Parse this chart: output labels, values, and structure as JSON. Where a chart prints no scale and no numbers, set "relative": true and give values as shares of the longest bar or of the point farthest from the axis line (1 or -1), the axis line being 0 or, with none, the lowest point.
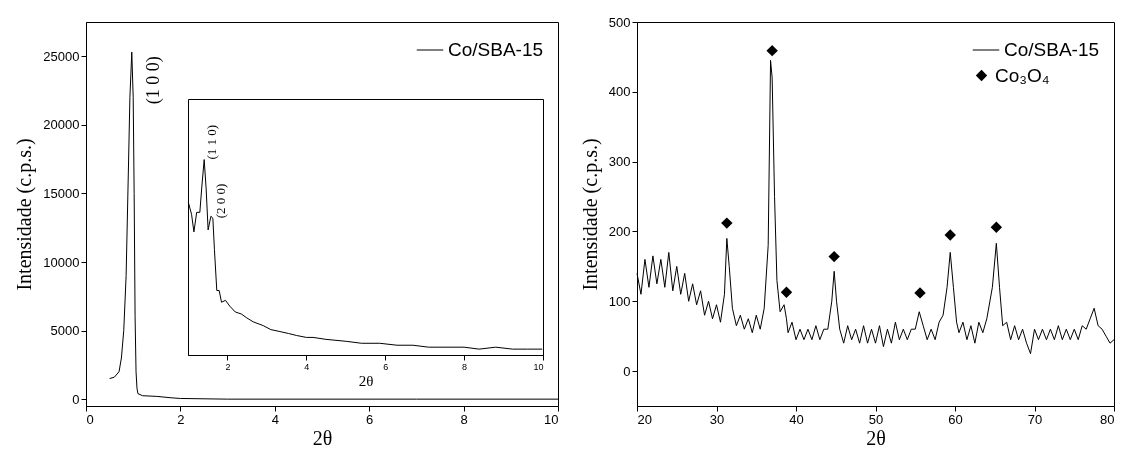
{
  "chart_data": [
    {
      "type": "line",
      "xlabel": "2θ",
      "ylabel": "Intensidade (c.p.s.)",
      "xlim": [
        0,
        10
      ],
      "ylim": [
        -500,
        27500
      ],
      "xticks": [
        0,
        2,
        4,
        6,
        8,
        10
      ],
      "yticks": [
        0,
        5000,
        10000,
        15000,
        20000,
        25000
      ],
      "legend": "top right",
      "x": [
        0.5,
        0.6,
        0.7,
        0.75,
        0.8,
        0.85,
        0.9,
        0.93,
        0.97,
        1.0,
        1.02,
        1.04,
        1.06,
        1.08,
        1.1,
        1.2,
        1.5,
        1.8,
        2,
        3,
        5,
        7,
        10
      ],
      "series": [
        {
          "name": "Co/SBA-15",
          "color": "#000000",
          "values": [
            1500,
            1600,
            2000,
            3000,
            5000,
            9000,
            17000,
            22000,
            25300,
            22000,
            15000,
            6000,
            2000,
            800,
            400,
            250,
            200,
            100,
            50,
            0,
            0,
            0,
            0
          ]
        }
      ],
      "annotations": [
        {
          "text": "(1 0 0)",
          "x": 0.97,
          "y": 25300
        }
      ]
    },
    {
      "type": "line",
      "relative": true,
      "xlabel": "2θ",
      "xlim": [
        1,
        10
      ],
      "xticks": [
        2,
        4,
        6,
        8,
        10
      ],
      "x": [
        1.01,
        1.09,
        1.15,
        1.22,
        1.3,
        1.35,
        1.41,
        1.46,
        1.51,
        1.58,
        1.63,
        1.67,
        1.73,
        1.79,
        1.85,
        1.95,
        2.06,
        2.2,
        2.35,
        2.49,
        2.65,
        2.91,
        3.1,
        3.33,
        3.55,
        3.75,
        4.0,
        4.17,
        4.5,
        5.01,
        5.4,
        5.86,
        6.3,
        6.7,
        7.1,
        7.54,
        8.0,
        8.38,
        8.8,
        9.23,
        9.6,
        9.98
      ],
      "series": [
        {
          "color": "#000000",
          "values": [
            0.78,
            0.72,
            0.63,
            0.73,
            0.73,
            0.86,
            1,
            0.85,
            0.64,
            0.71,
            0.7,
            0.54,
            0.33,
            0.33,
            0.27,
            0.28,
            0.25,
            0.22,
            0.21,
            0.19,
            0.17,
            0.15,
            0.13,
            0.12,
            0.11,
            0.1,
            0.09,
            0.09,
            0.08,
            0.07,
            0.06,
            0.06,
            0.05,
            0.05,
            0.04,
            0.04,
            0.04,
            0.03,
            0.04,
            0.03,
            0.03,
            0.03
          ]
        }
      ],
      "annotations": [
        {
          "text": "(1 1 0)",
          "x": 1.41,
          "y": 1
        },
        {
          "text": "(2 0 0)",
          "x": 1.63,
          "y": 0.7
        }
      ]
    },
    {
      "type": "line",
      "xlabel": "2θ",
      "ylabel": "Intensidade (c.p.s.)",
      "xlim": [
        20,
        80
      ],
      "ylim": [
        -50,
        500
      ],
      "xticks": [
        20,
        30,
        40,
        50,
        60,
        70,
        80
      ],
      "yticks": [
        0,
        100,
        200,
        300,
        400,
        500
      ],
      "legend": "top right",
      "x": [
        20,
        20.5,
        21,
        21.5,
        22,
        22.5,
        23,
        23.5,
        24,
        24.5,
        25,
        25.5,
        26,
        26.5,
        27,
        27.5,
        28,
        28.5,
        29,
        29.5,
        30,
        30.5,
        31,
        31.3,
        31.6,
        32,
        32.5,
        33,
        33.5,
        34,
        34.5,
        35,
        35.5,
        36,
        36.5,
        36.8,
        37,
        37.3,
        37.6,
        38,
        38.5,
        38.8,
        39,
        39.5,
        40,
        40.5,
        41,
        41.5,
        42,
        42.5,
        43,
        43.5,
        44,
        44.5,
        44.8,
        45.1,
        45.5,
        46,
        46.5,
        47,
        47.5,
        48,
        48.5,
        49,
        49.5,
        50,
        50.5,
        51,
        51.5,
        52,
        52.5,
        53,
        53.5,
        54,
        54.5,
        55,
        55.5,
        56,
        56.5,
        57,
        57.5,
        58,
        58.5,
        59,
        59.4,
        59.8,
        60.2,
        60.5,
        61,
        61.5,
        62,
        62.5,
        63,
        63.5,
        64,
        64.7,
        65.2,
        65.6,
        66,
        66.5,
        67,
        67.5,
        68,
        68.5,
        69,
        69.5,
        70,
        70.5,
        71,
        71.5,
        72,
        72.5,
        73,
        73.5,
        74,
        74.5,
        75,
        75.5,
        76,
        76.5,
        77,
        77.5,
        78,
        78.5,
        79,
        79.5,
        80
      ],
      "series": [
        {
          "name": "Co/SBA-15",
          "color": "#000000",
          "values": [
            140,
            110,
            160,
            120,
            165,
            125,
            160,
            120,
            170,
            115,
            150,
            110,
            140,
            100,
            125,
            95,
            115,
            80,
            100,
            75,
            95,
            70,
            110,
            190,
            150,
            90,
            65,
            80,
            60,
            75,
            55,
            80,
            60,
            90,
            180,
            445,
            420,
            250,
            130,
            85,
            95,
            75,
            55,
            70,
            45,
            60,
            45,
            60,
            45,
            65,
            45,
            60,
            60,
            100,
            143,
            100,
            60,
            40,
            65,
            45,
            60,
            40,
            65,
            40,
            60,
            40,
            65,
            35,
            60,
            40,
            70,
            45,
            60,
            45,
            60,
            60,
            85,
            65,
            45,
            60,
            45,
            70,
            80,
            120,
            170,
            120,
            70,
            55,
            70,
            45,
            65,
            40,
            70,
            55,
            75,
            120,
            183,
            120,
            65,
            70,
            45,
            65,
            45,
            60,
            40,
            25,
            60,
            45,
            60,
            45,
            60,
            45,
            65,
            45,
            60,
            45,
            60,
            45,
            65,
            60,
            75,
            90,
            65,
            60,
            50,
            40,
            45
          ]
        },
        {
          "type": "scatter",
          "name": "Co₃O₄",
          "color": "#000000",
          "marker": "diamond",
          "x": [
            31.3,
            37,
            38.8,
            44.8,
            55.6,
            59.4,
            65.2
          ],
          "values": [
            212,
            459,
            113,
            164,
            112,
            195,
            206
          ]
        }
      ]
    }
  ]
}
